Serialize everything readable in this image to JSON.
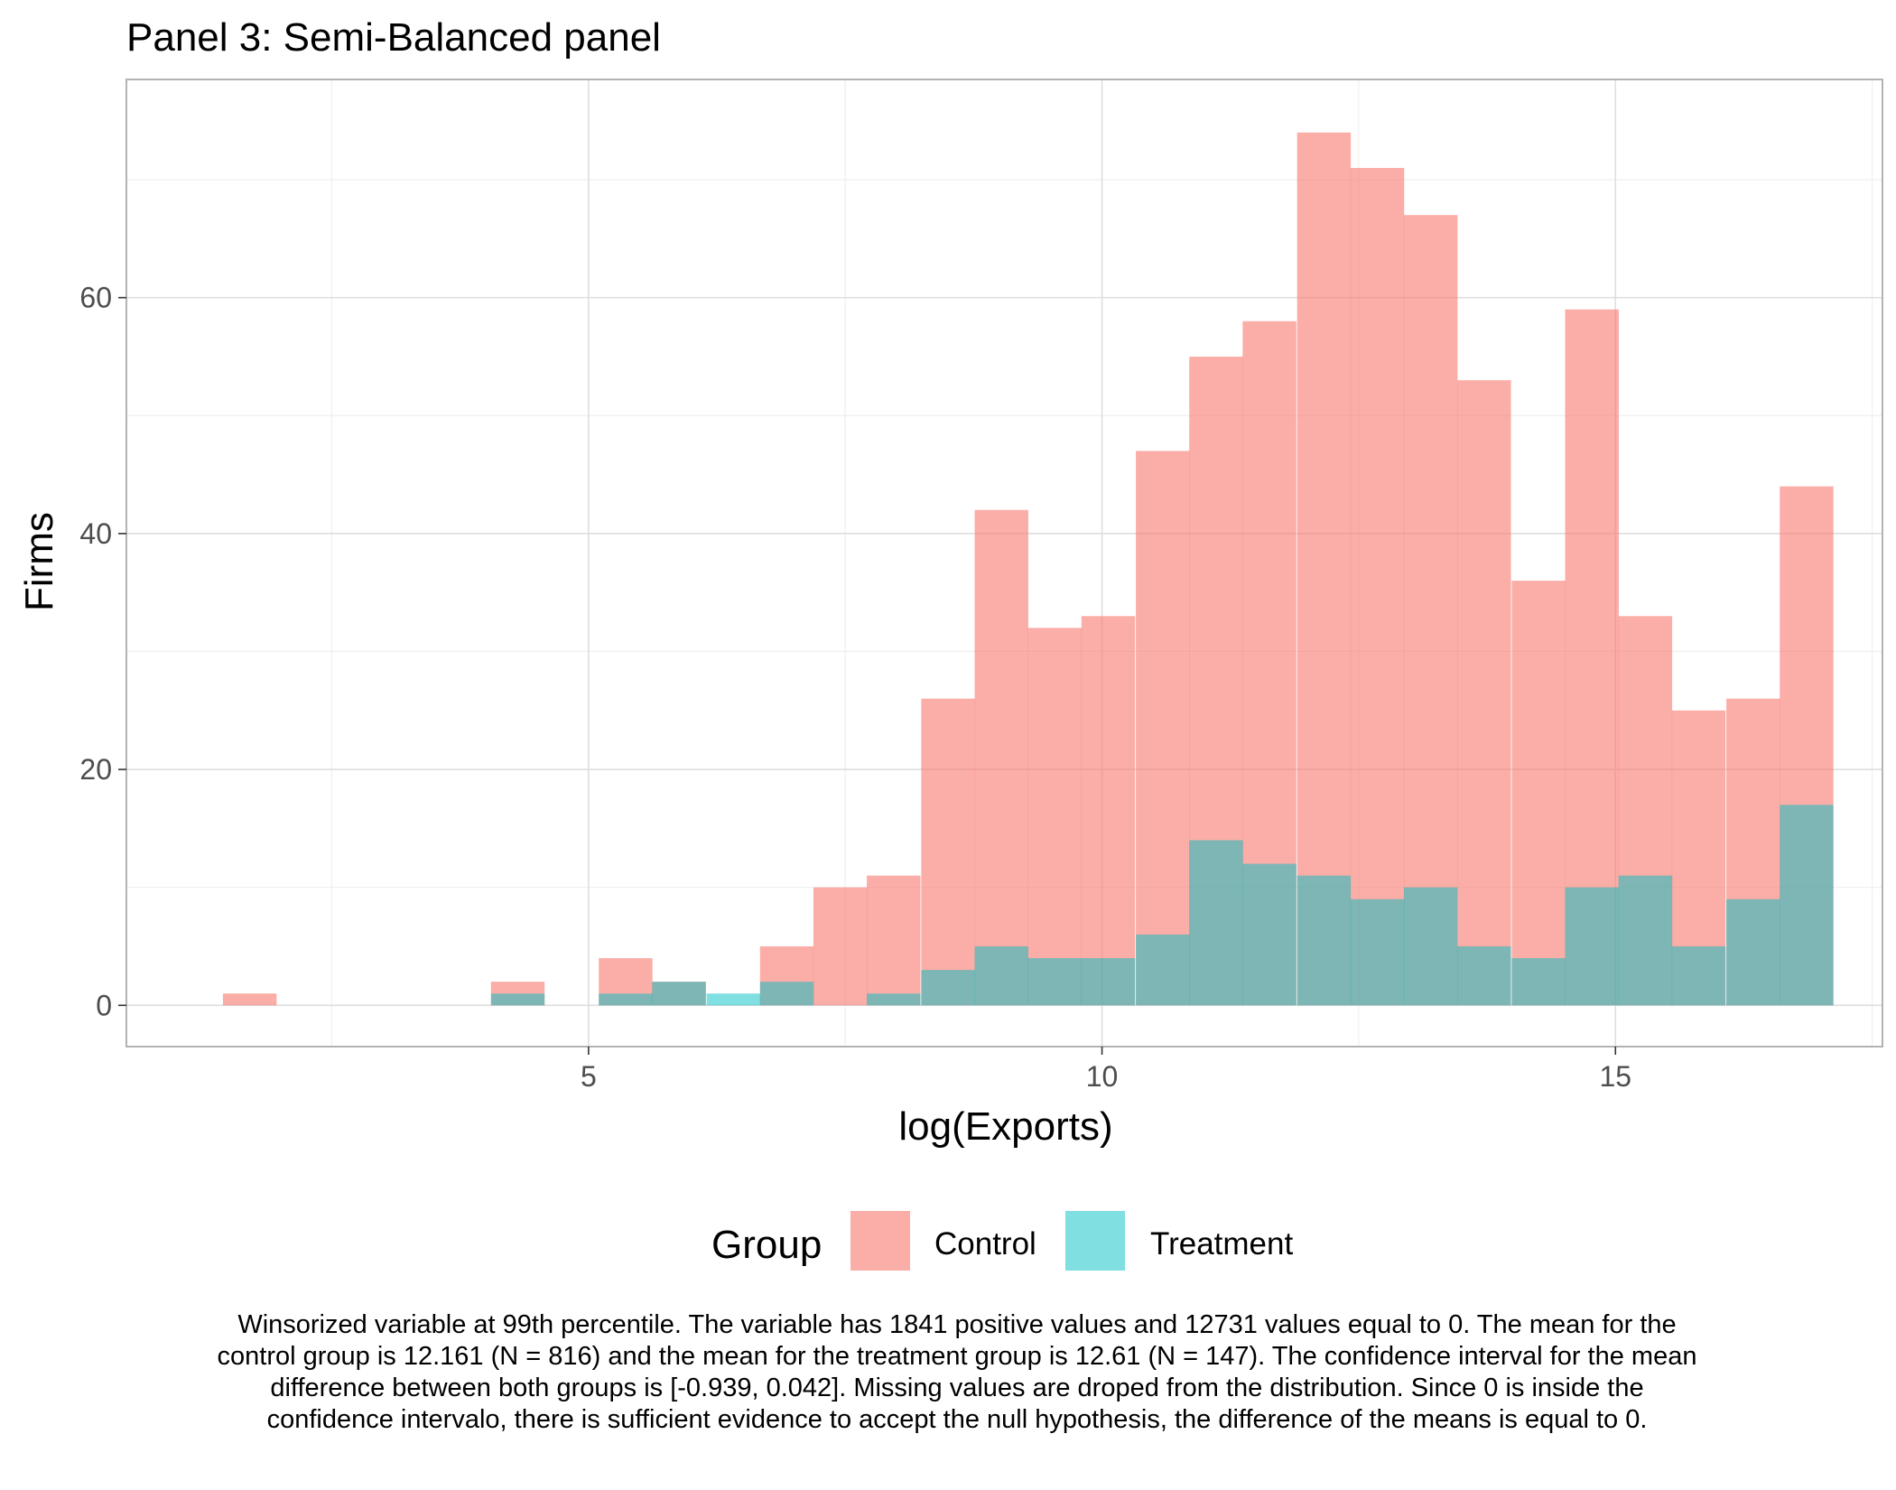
{
  "chart_data": {
    "type": "bar",
    "subtype": "overlapping-histogram",
    "title": "Panel 3: Semi-Balanced panel",
    "xlabel": "log(Exports)",
    "ylabel": "Firms",
    "xlim": [
      0.5,
      17.6
    ],
    "ylim": [
      -3.5,
      78.5
    ],
    "x_ticks": [
      5,
      10,
      15
    ],
    "y_ticks": [
      0,
      20,
      40,
      60
    ],
    "grid": true,
    "legend_position": "bottom",
    "legend_title": "Group",
    "bin_width": 0.5225,
    "bin_starts": [
      1.44,
      1.96,
      2.49,
      3.01,
      3.53,
      4.05,
      4.58,
      5.1,
      5.62,
      6.15,
      6.67,
      7.19,
      7.71,
      8.24,
      8.76,
      9.28,
      9.8,
      10.33,
      10.85,
      11.37,
      11.9,
      12.42,
      12.94,
      13.46,
      13.99,
      14.51,
      15.03,
      15.55,
      16.08,
      16.6
    ],
    "series": [
      {
        "name": "Control",
        "color": "#f8766d",
        "values": [
          1,
          0,
          0,
          0,
          0,
          2,
          0,
          4,
          2,
          0,
          5,
          10,
          11,
          26,
          42,
          32,
          33,
          47,
          55,
          58,
          74,
          71,
          67,
          53,
          36,
          59,
          33,
          25,
          26,
          44
        ]
      },
      {
        "name": "Treatment",
        "color": "#00bfc4",
        "values": [
          0,
          0,
          0,
          0,
          0,
          1,
          0,
          1,
          2,
          1,
          2,
          0,
          1,
          3,
          5,
          4,
          4,
          6,
          14,
          12,
          11,
          9,
          10,
          5,
          4,
          10,
          11,
          5,
          9,
          17
        ]
      }
    ],
    "caption": "Winsorized variable at 99th percentile. The variable has 1841 positive values and 12731 values equal to 0. The mean for the control group is 12.161 (N = 816) and the mean for the treatment group is 12.61 (N = 147). The confidence interval for the mean difference between both groups is [-0.939, 0.042]. Missing values are droped from the distribution. Since 0 is inside the confidence intervalo, there is sufficient evidence to accept the null hypothesis, the difference of the means is equal to 0."
  },
  "colors": {
    "control_fill": "#f8766d",
    "treatment_fill": "#00bfc4",
    "overlap_fill": "#7fb694",
    "panel_border": "#b3b3b3",
    "grid_major": "#dedede",
    "grid_minor": "#efefef"
  }
}
